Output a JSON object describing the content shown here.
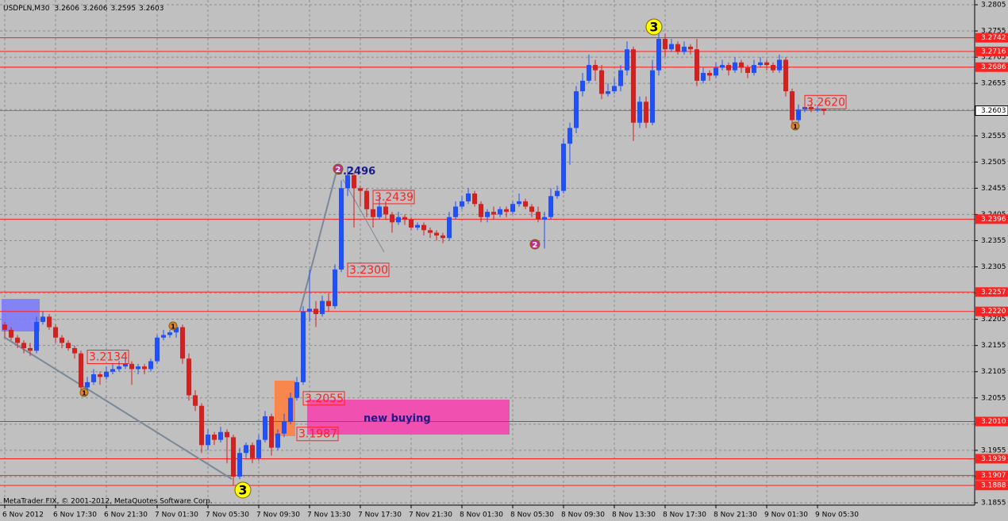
{
  "chart_data": {
    "type": "candlestick",
    "title": "USDPLN,M30",
    "categories": [
      "6 Nov 2012",
      null,
      null,
      null,
      null,
      null,
      null,
      null,
      "6 Nov 17:30",
      null,
      null,
      null,
      null,
      null,
      null,
      null,
      "6 Nov 21:30",
      null,
      null,
      null,
      null,
      null,
      null,
      null,
      "7 Nov 01:30",
      null,
      null,
      null,
      null,
      null,
      null,
      null,
      "7 Nov 05:30",
      null,
      null,
      null,
      null,
      null,
      null,
      null,
      "7 Nov 09:30",
      null,
      null,
      null,
      null,
      null,
      null,
      null,
      "7 Nov 13:30",
      null,
      null,
      null,
      null,
      null,
      null,
      null,
      "7 Nov 17:30",
      null,
      null,
      null,
      null,
      null,
      null,
      null,
      "7 Nov 21:30",
      null,
      null,
      null,
      null,
      null,
      null,
      null,
      "8 Nov 01:30",
      null,
      null,
      null,
      null,
      null,
      null,
      null,
      "8 Nov 05:30",
      null,
      null,
      null,
      null,
      null,
      null,
      null,
      "8 Nov 09:30",
      null,
      null,
      null,
      null,
      null,
      null,
      null,
      "8 Nov 13:30",
      null,
      null,
      null,
      null,
      null,
      null,
      null,
      "8 Nov 17:30",
      null,
      null,
      null,
      null,
      null,
      null,
      null,
      "8 Nov 21:30",
      null,
      null,
      null,
      null,
      null,
      null,
      null,
      "9 Nov 01:30",
      null,
      null,
      null,
      null,
      null,
      null,
      null,
      "9 Nov 05:30",
      null
    ],
    "open": [
      3.2195,
      3.2185,
      3.217,
      3.216,
      3.215,
      3.2145,
      3.22,
      3.221,
      3.219,
      3.217,
      3.216,
      3.215,
      3.214,
      3.2075,
      3.2085,
      3.21,
      3.2095,
      3.2105,
      3.211,
      3.2115,
      3.212,
      3.211,
      3.2115,
      3.211,
      3.2125,
      3.217,
      3.2175,
      3.218,
      3.219,
      3.213,
      3.206,
      3.204,
      3.1965,
      3.1985,
      3.1975,
      3.199,
      3.198,
      3.1905,
      3.195,
      3.1965,
      3.194,
      3.1975,
      3.202,
      3.196,
      3.1987,
      3.201,
      3.2055,
      3.2085,
      3.222,
      3.2225,
      3.2215,
      3.224,
      3.223,
      3.23,
      3.2455,
      3.248,
      3.2455,
      3.245,
      3.2415,
      3.24,
      3.242,
      3.2405,
      3.239,
      3.24,
      3.2395,
      3.238,
      3.2385,
      3.2375,
      3.237,
      3.2365,
      3.236,
      3.24,
      3.242,
      3.243,
      3.2445,
      3.2425,
      3.24,
      3.241,
      3.2405,
      3.2415,
      3.241,
      3.2425,
      3.243,
      3.242,
      3.241,
      3.2395,
      3.24,
      3.244,
      3.245,
      3.254,
      3.257,
      3.264,
      3.266,
      3.269,
      3.268,
      3.2635,
      3.264,
      3.265,
      3.268,
      3.272,
      3.258,
      3.262,
      3.258,
      3.268,
      3.274,
      3.272,
      3.273,
      3.2715,
      3.2725,
      3.272,
      3.266,
      3.2675,
      3.267,
      3.2685,
      3.269,
      3.268,
      3.2695,
      3.2685,
      3.2675,
      3.269,
      3.2695,
      3.269,
      3.268,
      3.27,
      3.264,
      3.2585,
      3.2605,
      3.261,
      3.2605,
      3.2606
    ],
    "high": [
      3.22,
      3.219,
      3.2175,
      3.2165,
      3.216,
      3.221,
      3.222,
      3.2215,
      3.2195,
      3.2175,
      3.2165,
      3.2155,
      3.2145,
      3.2095,
      3.211,
      3.2105,
      3.2115,
      3.212,
      3.2125,
      3.213,
      3.2125,
      3.212,
      3.212,
      3.213,
      3.2175,
      3.2185,
      3.2185,
      3.2195,
      3.2195,
      3.214,
      3.207,
      3.2045,
      3.1995,
      3.199,
      3.2,
      3.1995,
      3.1985,
      3.196,
      3.197,
      3.197,
      3.1985,
      3.203,
      3.2025,
      3.1995,
      3.2025,
      3.2065,
      3.2095,
      3.223,
      3.23,
      3.224,
      3.225,
      3.2255,
      3.231,
      3.247,
      3.2496,
      3.2485,
      3.246,
      3.2455,
      3.243,
      3.2439,
      3.243,
      3.241,
      3.241,
      3.2405,
      3.24,
      3.239,
      3.239,
      3.238,
      3.2375,
      3.237,
      3.241,
      3.243,
      3.244,
      3.2455,
      3.245,
      3.243,
      3.2415,
      3.242,
      3.242,
      3.242,
      3.243,
      3.2445,
      3.2435,
      3.2425,
      3.242,
      3.241,
      3.2455,
      3.246,
      3.255,
      3.258,
      3.265,
      3.2675,
      3.271,
      3.27,
      3.269,
      3.2655,
      3.2665,
      3.269,
      3.2735,
      3.2725,
      3.263,
      3.263,
      3.27,
      3.2755,
      3.275,
      3.274,
      3.2735,
      3.2735,
      3.273,
      3.274,
      3.2685,
      3.268,
      3.2695,
      3.27,
      3.2695,
      3.2705,
      3.27,
      3.269,
      3.27,
      3.2705,
      3.27,
      3.2695,
      3.271,
      3.2705,
      3.2645,
      3.2615,
      3.262,
      3.2615,
      3.2612,
      3.2606
    ],
    "low": [
      3.217,
      3.2165,
      3.215,
      3.214,
      3.2135,
      3.214,
      3.2195,
      3.2185,
      3.216,
      3.215,
      3.2145,
      3.213,
      3.2065,
      3.207,
      3.208,
      3.208,
      3.209,
      3.21,
      3.2105,
      3.211,
      3.208,
      3.21,
      3.21,
      3.2105,
      3.212,
      3.2165,
      3.217,
      3.217,
      3.212,
      3.205,
      3.203,
      3.195,
      3.1955,
      3.1965,
      3.197,
      3.193,
      3.1888,
      3.19,
      3.194,
      3.193,
      3.1935,
      3.197,
      3.1945,
      3.1955,
      3.198,
      3.2005,
      3.205,
      3.208,
      3.22,
      3.219,
      3.221,
      3.222,
      3.2225,
      3.2295,
      3.244,
      3.238,
      3.242,
      3.24,
      3.238,
      3.2395,
      3.2395,
      3.237,
      3.2385,
      3.2385,
      3.2375,
      3.2375,
      3.2365,
      3.236,
      3.2355,
      3.235,
      3.2355,
      3.2395,
      3.2415,
      3.2425,
      3.242,
      3.239,
      3.239,
      3.2395,
      3.24,
      3.24,
      3.2405,
      3.242,
      3.2415,
      3.24,
      3.239,
      3.234,
      3.2395,
      3.2435,
      3.2445,
      3.25,
      3.256,
      3.263,
      3.2655,
      3.266,
      3.2625,
      3.263,
      3.2635,
      3.264,
      3.267,
      3.2545,
      3.257,
      3.257,
      3.2575,
      3.267,
      3.2705,
      3.2715,
      3.271,
      3.271,
      3.271,
      3.265,
      3.2655,
      3.266,
      3.2665,
      3.268,
      3.267,
      3.2675,
      3.2675,
      3.2665,
      3.267,
      3.2685,
      3.268,
      3.2675,
      3.2675,
      3.263,
      3.2575,
      3.258,
      3.26,
      3.26,
      3.26,
      3.2595
    ],
    "close": [
      3.2185,
      3.217,
      3.216,
      3.215,
      3.2145,
      3.22,
      3.221,
      3.219,
      3.217,
      3.216,
      3.215,
      3.214,
      3.2075,
      3.2085,
      3.21,
      3.2095,
      3.2105,
      3.211,
      3.2115,
      3.212,
      3.211,
      3.2115,
      3.211,
      3.2125,
      3.217,
      3.2175,
      3.218,
      3.219,
      3.213,
      3.206,
      3.204,
      3.1965,
      3.1985,
      3.1975,
      3.199,
      3.198,
      3.1905,
      3.195,
      3.1965,
      3.194,
      3.1975,
      3.202,
      3.196,
      3.1987,
      3.201,
      3.2055,
      3.2085,
      3.222,
      3.2225,
      3.2215,
      3.224,
      3.223,
      3.23,
      3.2455,
      3.248,
      3.2455,
      3.245,
      3.2415,
      3.24,
      3.242,
      3.2405,
      3.239,
      3.24,
      3.2395,
      3.238,
      3.2385,
      3.2375,
      3.237,
      3.2365,
      3.236,
      3.24,
      3.242,
      3.243,
      3.2445,
      3.2425,
      3.24,
      3.241,
      3.2405,
      3.2415,
      3.241,
      3.2425,
      3.243,
      3.242,
      3.241,
      3.2395,
      3.24,
      3.244,
      3.245,
      3.254,
      3.257,
      3.264,
      3.266,
      3.269,
      3.268,
      3.2635,
      3.264,
      3.265,
      3.268,
      3.272,
      3.258,
      3.262,
      3.258,
      3.268,
      3.274,
      3.272,
      3.273,
      3.2715,
      3.2725,
      3.272,
      3.266,
      3.2675,
      3.267,
      3.2685,
      3.269,
      3.268,
      3.2695,
      3.2685,
      3.2675,
      3.269,
      3.2695,
      3.269,
      3.268,
      3.27,
      3.264,
      3.2585,
      3.2605,
      3.261,
      3.2605,
      3.2606,
      3.2603
    ],
    "bull_color": "#1f4fff",
    "bear_color": "#d42020",
    "ylim": [
      3.1855,
      3.2805
    ],
    "yticks": [
      3.1855,
      3.1905,
      3.1955,
      3.2005,
      3.2055,
      3.2105,
      3.2155,
      3.2205,
      3.2255,
      3.2305,
      3.2355,
      3.2405,
      3.2455,
      3.2505,
      3.2555,
      3.2605,
      3.2655,
      3.2705,
      3.2755,
      3.2805
    ],
    "grid": true,
    "level_color": "#ff2020",
    "levels": [
      3.2742,
      3.2716,
      3.2686,
      3.2396,
      3.2257,
      {
        "value": 3.222,
        "label": "3.2220"
      },
      {
        "value": 3.201,
        "label": "3.2010"
      },
      3.1939,
      3.1907,
      3.1888
    ],
    "price_labels": [
      {
        "value": 3.2134,
        "label": "3.2134"
      },
      {
        "value": 3.23,
        "label": "3.2300"
      },
      {
        "value": 3.2439,
        "label": "3.2439"
      },
      {
        "value": 3.2055,
        "label": "3.2055"
      },
      {
        "value": 3.1987,
        "label": "3.1987"
      },
      {
        "value": 3.262,
        "label": "3.2620"
      }
    ],
    "peak_label": 3.2496,
    "wave_labels": [
      "3",
      "3",
      "2",
      "2",
      "1",
      "1",
      "1"
    ],
    "zone_label": "new buying",
    "footer": "MetaTrader FIX, © 2001-2012, MetaQuotes Software Corp."
  }
}
